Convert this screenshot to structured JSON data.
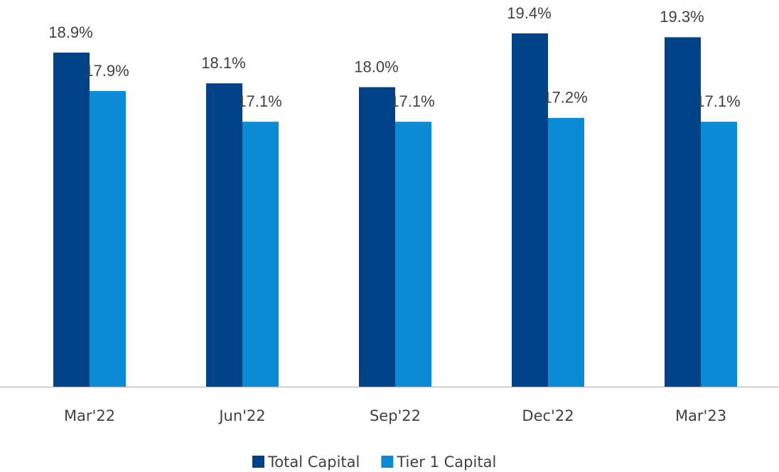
{
  "chart_data": {
    "type": "bar",
    "categories": [
      "Mar'22",
      "Jun'22",
      "Sep'22",
      "Dec'22",
      "Mar'23"
    ],
    "series": [
      {
        "name": "Total Capital",
        "color": "#004287",
        "values": [
          18.9,
          18.1,
          18.0,
          19.4,
          19.3
        ],
        "value_labels": [
          "18.9%",
          "18.1%",
          "18.0%",
          "19.4%",
          "19.3%"
        ]
      },
      {
        "name": "Tier 1 Capital",
        "color": "#0b8bd5",
        "values": [
          17.9,
          17.1,
          17.1,
          17.2,
          17.1
        ],
        "value_labels": [
          "17.9%",
          "17.1%",
          "17.1%",
          "17.2%",
          "17.1%"
        ]
      }
    ],
    "ylim": [
      10.2,
      20.27
    ],
    "legend": "bottom"
  }
}
